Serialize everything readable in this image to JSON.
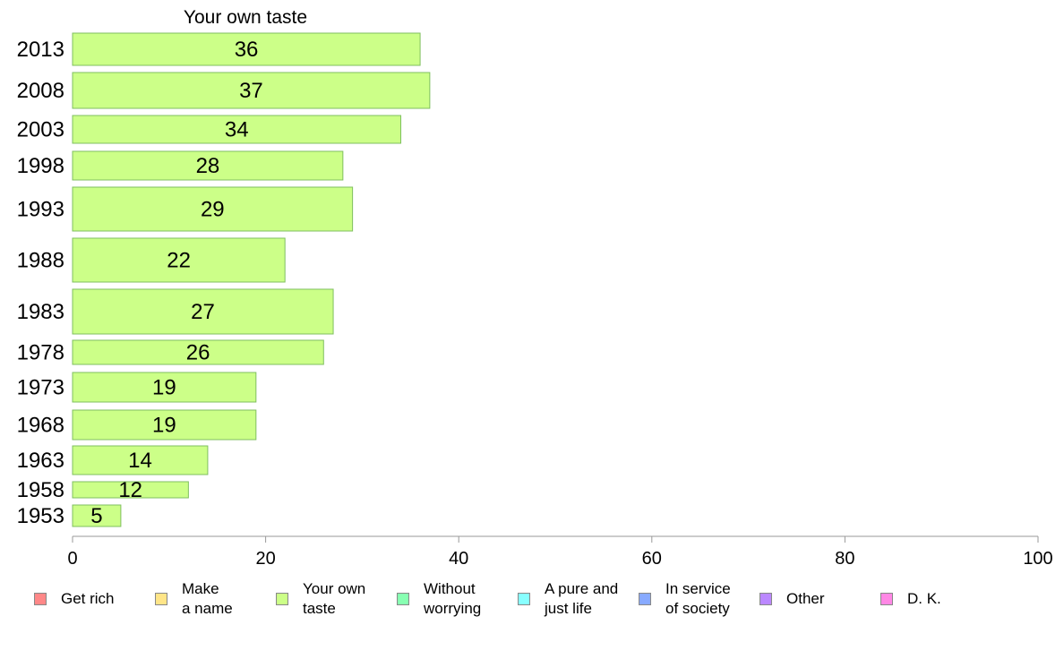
{
  "chart_data": {
    "type": "bar",
    "orientation": "horizontal",
    "title": "Your own taste",
    "categories": [
      "2013",
      "2008",
      "2003",
      "1998",
      "1993",
      "1988",
      "1983",
      "1978",
      "1973",
      "1968",
      "1963",
      "1958",
      "1953"
    ],
    "values": [
      36,
      37,
      34,
      28,
      29,
      22,
      27,
      26,
      19,
      19,
      14,
      12,
      5
    ],
    "value_labels": [
      "36",
      "37",
      "34",
      "28",
      "29",
      "22",
      "27",
      "26",
      "19",
      "19",
      "14",
      "12",
      "5"
    ],
    "xlim": [
      0,
      100
    ],
    "xticks": [
      0,
      20,
      40,
      60,
      80,
      100
    ],
    "xtick_labels": [
      "0",
      "20",
      "40",
      "60",
      "80",
      "100"
    ],
    "grid": false,
    "legend_position": "bottom",
    "bar_color": "#ccff88",
    "legend": [
      {
        "label": "Get rich",
        "color": "#ff8888"
      },
      {
        "label": "Make\na name",
        "color": "#ffe588"
      },
      {
        "label": "Your own\ntaste",
        "color": "#ccff88"
      },
      {
        "label": "Without\nworrying",
        "color": "#88ffb2"
      },
      {
        "label": "A pure and\njust life",
        "color": "#88ffff"
      },
      {
        "label": "In service\nof society",
        "color": "#88aaff"
      },
      {
        "label": "Other",
        "color": "#bb88ff"
      },
      {
        "label": "D. K.",
        "color": "#ff88e5"
      }
    ]
  }
}
